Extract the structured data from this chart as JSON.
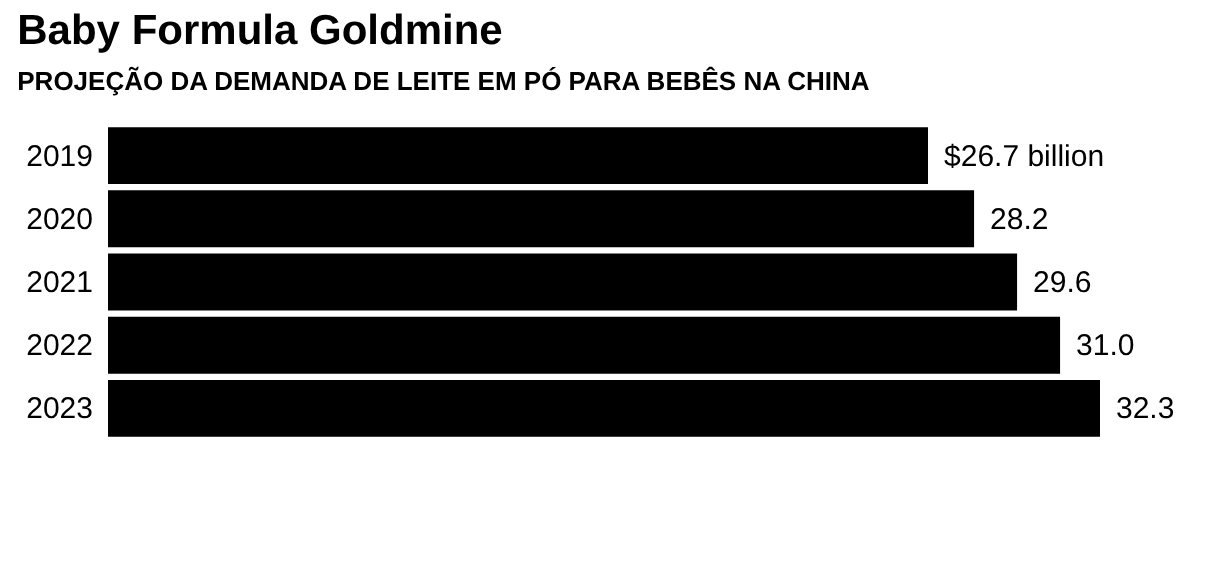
{
  "chart_data": {
    "type": "bar",
    "orientation": "horizontal",
    "title": "Baby Formula Goldmine",
    "subtitle": "PROJEÇÃO DA DEMANDA DE LEITE EM PÓ PARA BEBÊS NA CHINA",
    "categories": [
      "2019",
      "2020",
      "2021",
      "2022",
      "2023"
    ],
    "values": [
      26.7,
      28.2,
      29.6,
      31.0,
      32.3
    ],
    "value_labels": [
      "$26.7 billion",
      "28.2",
      "29.6",
      "31.0",
      "32.3"
    ],
    "color": "#000000"
  }
}
